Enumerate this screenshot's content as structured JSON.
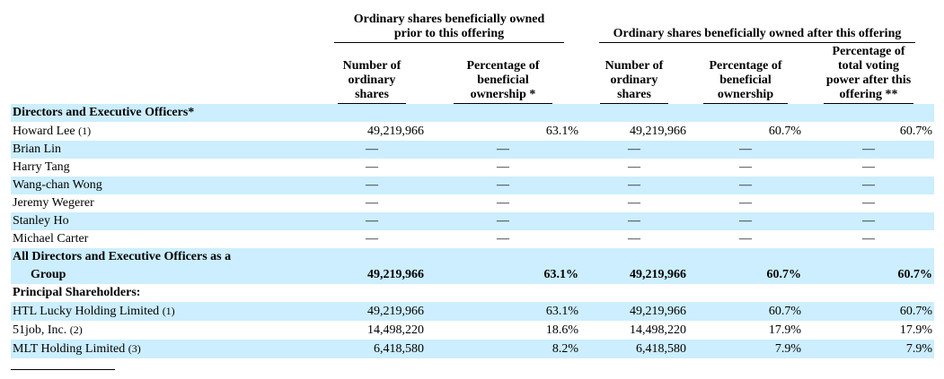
{
  "header": {
    "group_prior": "Ordinary shares beneficially owned prior to this offering",
    "group_after": "Ordinary shares beneficially owned after this offering",
    "col_num_prior": "Number of ordinary shares",
    "col_pct_prior": "Percentage of beneficial ownership *",
    "col_num_after": "Number of ordinary shares",
    "col_pct_after": "Percentage of beneficial ownership",
    "col_voting": "Percentage of total voting power after this offering **"
  },
  "sections": {
    "directors": "Directors and Executive Officers*",
    "principal": "Principal Shareholders:"
  },
  "rows": [
    {
      "name": "Howard Lee",
      "note": "(1)",
      "num_prior": "49,219,966",
      "pct_prior": "63.1%",
      "num_after": "49,219,966",
      "pct_after": "60.7%",
      "voting": "60.7%"
    },
    {
      "name": "Brian Lin",
      "note": "",
      "num_prior": "—",
      "pct_prior": "—",
      "num_after": "—",
      "pct_after": "—",
      "voting": "—"
    },
    {
      "name": "Harry Tang",
      "note": "",
      "num_prior": "—",
      "pct_prior": "—",
      "num_after": "—",
      "pct_after": "—",
      "voting": "—"
    },
    {
      "name": "Wang-chan Wong",
      "note": "",
      "num_prior": "—",
      "pct_prior": "—",
      "num_after": "—",
      "pct_after": "—",
      "voting": "—"
    },
    {
      "name": "Jeremy Wegerer",
      "note": "",
      "num_prior": "—",
      "pct_prior": "—",
      "num_after": "—",
      "pct_after": "—",
      "voting": "—"
    },
    {
      "name": "Stanley Ho",
      "note": "",
      "num_prior": "—",
      "pct_prior": "—",
      "num_after": "—",
      "pct_after": "—",
      "voting": "—"
    },
    {
      "name": "Michael Carter",
      "note": "",
      "num_prior": "—",
      "pct_prior": "—",
      "num_after": "—",
      "pct_after": "—",
      "voting": "—"
    }
  ],
  "group_total": {
    "line1": "All Directors and Executive Officers as a",
    "line2": "Group",
    "num_prior": "49,219,966",
    "pct_prior": "63.1%",
    "num_after": "49,219,966",
    "pct_after": "60.7%",
    "voting": "60.7%"
  },
  "principal_rows": [
    {
      "name": "HTL Lucky Holding Limited",
      "note": "(1)",
      "num_prior": "49,219,966",
      "pct_prior": "63.1%",
      "num_after": "49,219,966",
      "pct_after": "60.7%",
      "voting": "60.7%"
    },
    {
      "name": "51job, Inc.",
      "note": "(2)",
      "num_prior": "14,498,220",
      "pct_prior": "18.6%",
      "num_after": "14,498,220",
      "pct_after": "17.9%",
      "voting": "17.9%"
    },
    {
      "name": "MLT Holding Limited",
      "note": "(3)",
      "num_prior": "6,418,580",
      "pct_prior": "8.2%",
      "num_after": "6,418,580",
      "pct_after": "7.9%",
      "voting": "7.9%"
    }
  ],
  "colors": {
    "shade": "#cceeff"
  }
}
